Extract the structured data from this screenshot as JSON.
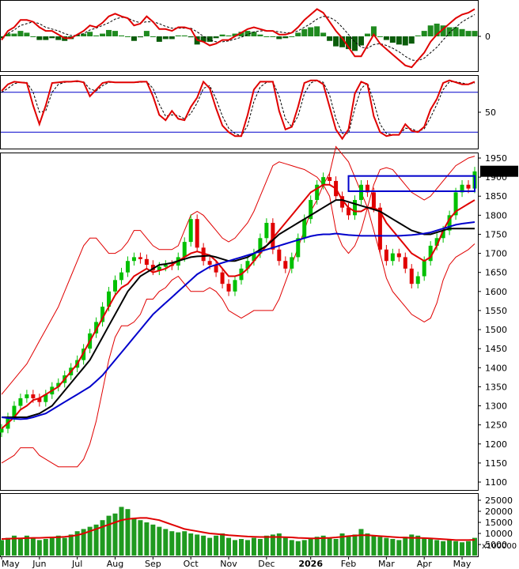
{
  "chart_data": [
    {
      "type": "line",
      "panel": "macd",
      "y_ticks": [
        "0"
      ],
      "series": [
        {
          "color": "#e00000",
          "values": [
            -4,
            6,
            10,
            18,
            18,
            16,
            10,
            6,
            6,
            2,
            -2,
            -2,
            2,
            6,
            12,
            10,
            15,
            22,
            25,
            22,
            20,
            12,
            14,
            22,
            16,
            8,
            8,
            6,
            10,
            10,
            8,
            -4,
            -6,
            -10,
            -8,
            -4,
            -4,
            0,
            4,
            8,
            10,
            8,
            6,
            6,
            2,
            2,
            4,
            10,
            18,
            24,
            30,
            26,
            16,
            6,
            -2,
            -12,
            -22,
            -22,
            -10,
            2,
            -8,
            -14,
            -20,
            -26,
            -32,
            -34,
            -26,
            -18,
            -6,
            2,
            8,
            14,
            20,
            24,
            26,
            30
          ]
        },
        {
          "color": "#000000",
          "dashed": true,
          "values": [
            -2,
            3,
            7,
            12,
            14,
            16,
            14,
            10,
            8,
            6,
            3,
            1,
            1,
            3,
            7,
            9,
            12,
            15,
            19,
            21,
            20,
            17,
            15,
            16,
            16,
            14,
            11,
            9,
            9,
            9,
            9,
            5,
            0,
            -4,
            -6,
            -6,
            -5,
            -3,
            -1,
            2,
            5,
            6,
            6,
            6,
            5,
            4,
            4,
            6,
            10,
            14,
            19,
            22,
            21,
            17,
            10,
            2,
            -6,
            -12,
            -13,
            -9,
            -8,
            -10,
            -13,
            -17,
            -22,
            -26,
            -27,
            -24,
            -18,
            -12,
            -4,
            4,
            10,
            16,
            20,
            24
          ]
        }
      ],
      "histogram": [
        -2,
        3,
        3,
        6,
        4,
        0,
        -4,
        -4,
        -2,
        -4,
        -5,
        -3,
        1,
        3,
        5,
        1,
        3,
        7,
        6,
        1,
        0,
        -5,
        -1,
        6,
        0,
        -6,
        -3,
        -3,
        1,
        1,
        -1,
        -9,
        -6,
        -6,
        -2,
        2,
        1,
        3,
        5,
        6,
        5,
        2,
        0,
        0,
        -3,
        -2,
        0,
        4,
        8,
        10,
        11,
        4,
        -5,
        -11,
        -12,
        -14,
        -16,
        -10,
        3,
        11,
        0,
        -4,
        -7,
        -9,
        -10,
        -8,
        1,
        6,
        12,
        14,
        12,
        10,
        10,
        8,
        6,
        6
      ],
      "histogram_colors": {
        "positive": "#1f8a1f",
        "negative": "#0a5c0a"
      }
    },
    {
      "type": "line",
      "panel": "oscillator",
      "y_ticks": [
        "50"
      ],
      "reference_lines": [
        80,
        20
      ],
      "ylim": [
        0,
        100
      ],
      "series": [
        {
          "color": "#e00000",
          "values": [
            82,
            92,
            96,
            95,
            94,
            60,
            32,
            60,
            94,
            95,
            96,
            96,
            97,
            95,
            74,
            84,
            94,
            96,
            95,
            95,
            95,
            95,
            96,
            96,
            74,
            46,
            38,
            52,
            40,
            38,
            58,
            72,
            96,
            86,
            56,
            30,
            20,
            14,
            14,
            46,
            84,
            96,
            96,
            96,
            52,
            24,
            28,
            58,
            94,
            98,
            98,
            92,
            58,
            24,
            10,
            24,
            78,
            96,
            92,
            44,
            20,
            14,
            16,
            16,
            32,
            22,
            20,
            28,
            54,
            70,
            94,
            98,
            95,
            92,
            92,
            96
          ]
        },
        {
          "color": "#000000",
          "dashed": true,
          "values": [
            80,
            86,
            93,
            95,
            95,
            80,
            50,
            52,
            80,
            92,
            95,
            96,
            96,
            96,
            85,
            82,
            90,
            95,
            95,
            95,
            95,
            95,
            95,
            96,
            86,
            62,
            44,
            46,
            45,
            40,
            48,
            64,
            86,
            90,
            70,
            44,
            26,
            18,
            14,
            30,
            66,
            88,
            95,
            96,
            74,
            40,
            28,
            44,
            78,
            94,
            98,
            95,
            76,
            40,
            18,
            18,
            56,
            86,
            94,
            66,
            32,
            18,
            16,
            16,
            26,
            25,
            21,
            25,
            42,
            62,
            84,
            96,
            96,
            94,
            92,
            94
          ]
        }
      ]
    },
    {
      "type": "candlestick",
      "panel": "price",
      "y_ticks": [
        "1100",
        "1150",
        "1200",
        "1250",
        "1300",
        "1350",
        "1400",
        "1450",
        "1500",
        "1550",
        "1600",
        "1650",
        "1700",
        "1750",
        "1800",
        "1850",
        "1900",
        "1950"
      ],
      "ylim": [
        1075,
        1970
      ],
      "last_price_label": "1915.370",
      "x_tick_labels": [
        "May",
        "Jun",
        "Jul",
        "Aug",
        "Sep",
        "Oct",
        "Nov",
        "Dec",
        "2026",
        "Feb",
        "Mar",
        "Apr",
        "May"
      ],
      "bar_colors": {
        "up": "#00c000",
        "down": "#e00000"
      },
      "close": [
        1240,
        1270,
        1300,
        1320,
        1330,
        1320,
        1310,
        1330,
        1350,
        1360,
        1380,
        1400,
        1420,
        1450,
        1490,
        1520,
        1560,
        1600,
        1630,
        1650,
        1680,
        1690,
        1685,
        1670,
        1655,
        1665,
        1670,
        1668,
        1690,
        1730,
        1790,
        1715,
        1680,
        1670,
        1650,
        1620,
        1600,
        1630,
        1660,
        1680,
        1700,
        1740,
        1780,
        1710,
        1680,
        1660,
        1690,
        1740,
        1790,
        1840,
        1880,
        1900,
        1890,
        1850,
        1820,
        1800,
        1840,
        1880,
        1860,
        1820,
        1710,
        1680,
        1700,
        1690,
        1660,
        1620,
        1640,
        1680,
        1720,
        1740,
        1760,
        1800,
        1860,
        1880,
        1870,
        1915
      ],
      "bollinger": {
        "color": "#e00000",
        "upper": [
          1330,
          1350,
          1370,
          1390,
          1410,
          1440,
          1470,
          1500,
          1530,
          1560,
          1600,
          1640,
          1680,
          1720,
          1740,
          1740,
          1720,
          1700,
          1700,
          1710,
          1730,
          1760,
          1760,
          1740,
          1720,
          1710,
          1710,
          1710,
          1720,
          1760,
          1800,
          1810,
          1800,
          1780,
          1760,
          1740,
          1730,
          1740,
          1760,
          1780,
          1810,
          1850,
          1890,
          1930,
          1940,
          1935,
          1930,
          1925,
          1920,
          1910,
          1900,
          1880,
          1850,
          1760,
          1720,
          1700,
          1720,
          1760,
          1820,
          1880,
          1920,
          1925,
          1920,
          1900,
          1880,
          1860,
          1850,
          1840,
          1850,
          1870,
          1890,
          1910,
          1930,
          1940,
          1950,
          1955
        ]
      },
      "moving_averages": [
        {
          "color": "#e00000",
          "values": [
            1240,
            1255,
            1270,
            1290,
            1300,
            1315,
            1320,
            1330,
            1340,
            1350,
            1370,
            1390,
            1410,
            1440,
            1470,
            1500,
            1530,
            1560,
            1590,
            1610,
            1620,
            1640,
            1650,
            1660,
            1650,
            1655,
            1660,
            1670,
            1680,
            1690,
            1700,
            1705,
            1700,
            1695,
            1680,
            1660,
            1640,
            1640,
            1645,
            1660,
            1680,
            1700,
            1720,
            1740,
            1760,
            1780,
            1800,
            1820,
            1840,
            1860,
            1870,
            1880,
            1880,
            1870,
            1840,
            1820,
            1810,
            1810,
            1820,
            1820,
            1810,
            1780,
            1760,
            1740,
            1720,
            1700,
            1690,
            1680,
            1690,
            1720,
            1760,
            1790,
            1810,
            1820,
            1830,
            1840
          ]
        },
        {
          "color": "#000000",
          "values": [
            1270,
            1270,
            1270,
            1270,
            1270,
            1275,
            1280,
            1290,
            1300,
            1320,
            1340,
            1360,
            1380,
            1400,
            1420,
            1450,
            1480,
            1510,
            1540,
            1570,
            1600,
            1620,
            1640,
            1650,
            1660,
            1670,
            1672,
            1675,
            1680,
            1685,
            1690,
            1692,
            1693,
            1694,
            1690,
            1685,
            1680,
            1680,
            1685,
            1690,
            1700,
            1710,
            1720,
            1735,
            1750,
            1760,
            1770,
            1780,
            1790,
            1800,
            1810,
            1820,
            1830,
            1840,
            1840,
            1835,
            1830,
            1825,
            1820,
            1815,
            1810,
            1800,
            1790,
            1780,
            1770,
            1760,
            1755,
            1750,
            1750,
            1755,
            1760,
            1765,
            1765,
            1765,
            1765,
            1765
          ]
        },
        {
          "color": "#0000cc",
          "values": [
            1270,
            1268,
            1266,
            1265,
            1266,
            1270,
            1275,
            1280,
            1290,
            1300,
            1310,
            1320,
            1330,
            1340,
            1350,
            1365,
            1380,
            1400,
            1420,
            1440,
            1460,
            1480,
            1500,
            1520,
            1540,
            1555,
            1570,
            1585,
            1600,
            1615,
            1630,
            1645,
            1655,
            1665,
            1670,
            1675,
            1680,
            1685,
            1690,
            1695,
            1700,
            1705,
            1710,
            1715,
            1720,
            1725,
            1730,
            1735,
            1740,
            1745,
            1748,
            1750,
            1750,
            1752,
            1750,
            1748,
            1747,
            1746,
            1746,
            1746,
            1746,
            1746,
            1746,
            1746,
            1747,
            1748,
            1750,
            1752,
            1755,
            1760,
            1765,
            1770,
            1775,
            1778,
            1780,
            1782
          ]
        }
      ],
      "annotation_box": {
        "color": "#0000cc",
        "x_range": [
          55,
          75
        ],
        "y_range": [
          1863,
          1903
        ]
      }
    },
    {
      "type": "bar",
      "panel": "volume",
      "y_ticks": [
        "5000",
        "10000",
        "15000",
        "20000",
        "25000"
      ],
      "unit_label": "x100000",
      "bar_color": "#1f9a1f",
      "ma_color": "#e00000",
      "values": [
        7000,
        8000,
        9000,
        7500,
        9000,
        8000,
        7000,
        7500,
        8500,
        9000,
        8000,
        9500,
        11000,
        12000,
        13000,
        14000,
        16000,
        18000,
        19000,
        22000,
        21000,
        17000,
        16000,
        15000,
        14000,
        13000,
        12000,
        11000,
        10500,
        11000,
        10000,
        9500,
        9000,
        8000,
        9000,
        10000,
        8000,
        7000,
        7500,
        7000,
        8000,
        7500,
        9000,
        9500,
        10000,
        8000,
        7000,
        6500,
        7000,
        7500,
        8500,
        9000,
        8000,
        7500,
        10000,
        9000,
        9500,
        12000,
        10000,
        9000,
        8500,
        8000,
        7500,
        7000,
        8500,
        9500,
        9000,
        8000,
        7500,
        7000,
        6500,
        7000,
        6500,
        6000,
        6500,
        8000
      ],
      "ma_values": [
        7500,
        7600,
        7700,
        7800,
        7900,
        8000,
        8000,
        8100,
        8200,
        8300,
        8500,
        8800,
        9200,
        10000,
        11000,
        12000,
        13000,
        14000,
        15000,
        16000,
        16500,
        16800,
        17000,
        17000,
        16500,
        16000,
        15000,
        14000,
        13000,
        12000,
        11500,
        11000,
        10500,
        10000,
        9800,
        9500,
        9200,
        9000,
        8800,
        8600,
        8500,
        8400,
        8400,
        8400,
        8400,
        8300,
        8200,
        8000,
        7900,
        7800,
        7800,
        7900,
        8000,
        8200,
        8500,
        8800,
        9000,
        9200,
        9200,
        9000,
        8800,
        8600,
        8400,
        8200,
        8100,
        8000,
        8000,
        7900,
        7800,
        7600,
        7400,
        7200,
        7000,
        7000,
        7000,
        7100
      ]
    }
  ]
}
